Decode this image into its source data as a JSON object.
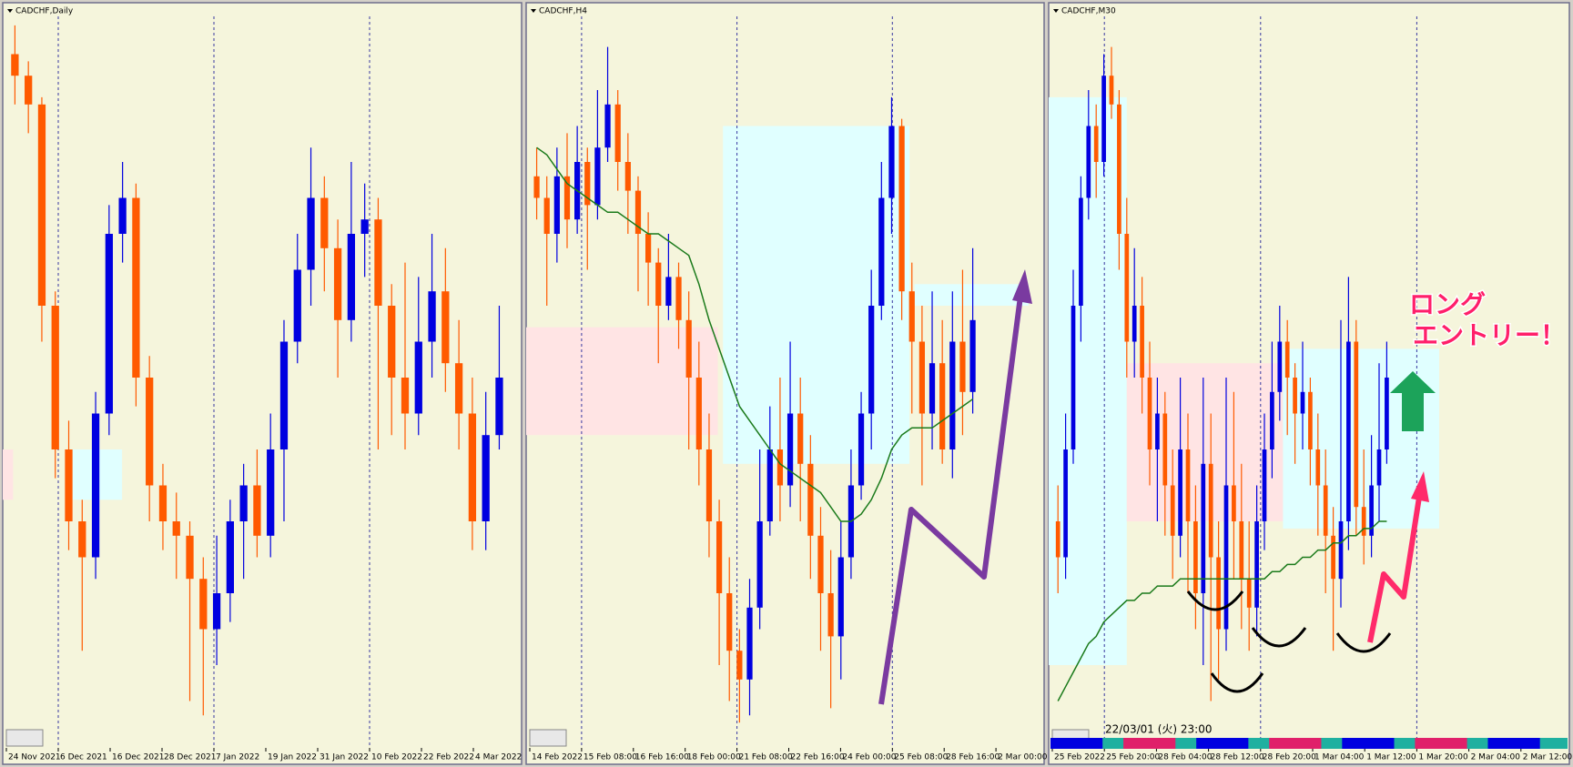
{
  "chart_data": [
    {
      "type": "candlestick",
      "title": "CADCHF,Daily",
      "ylim": [
        0,
        100
      ],
      "categories": [
        "24 Nov 2021",
        "6 Dec 2021",
        "16 Dec 2021",
        "28 Dec 2021",
        "7 Jan 2022",
        "19 Jan 2022",
        "31 Jan 2022",
        "10 Feb 2022",
        "22 Feb 2022",
        "4 Mar 2022"
      ],
      "up_color": "#0000e0",
      "down_color": "#ff5a00",
      "ohlc": [
        [
          95,
          99,
          88,
          92
        ],
        [
          92,
          94,
          84,
          88
        ],
        [
          88,
          89,
          55,
          60
        ],
        [
          60,
          62,
          36,
          40
        ],
        [
          40,
          44,
          26,
          30
        ],
        [
          30,
          33,
          12,
          25
        ],
        [
          25,
          48,
          22,
          45
        ],
        [
          45,
          74,
          42,
          70
        ],
        [
          70,
          80,
          66,
          75
        ],
        [
          75,
          77,
          46,
          50
        ],
        [
          50,
          53,
          30,
          35
        ],
        [
          35,
          38,
          26,
          30
        ],
        [
          30,
          34,
          22,
          28
        ],
        [
          28,
          30,
          5,
          22
        ],
        [
          22,
          25,
          3,
          15
        ],
        [
          15,
          28,
          10,
          20
        ],
        [
          20,
          33,
          16,
          30
        ],
        [
          30,
          38,
          22,
          35
        ],
        [
          35,
          40,
          25,
          28
        ],
        [
          28,
          45,
          25,
          40
        ],
        [
          40,
          58,
          30,
          55
        ],
        [
          55,
          70,
          52,
          65
        ],
        [
          65,
          82,
          60,
          75
        ],
        [
          75,
          78,
          62,
          68
        ],
        [
          68,
          72,
          50,
          58
        ],
        [
          58,
          80,
          55,
          70
        ],
        [
          70,
          77,
          64,
          72
        ],
        [
          72,
          75,
          40,
          60
        ],
        [
          60,
          63,
          42,
          50
        ],
        [
          50,
          66,
          40,
          45
        ],
        [
          45,
          64,
          42,
          55
        ],
        [
          55,
          70,
          50,
          62
        ],
        [
          62,
          68,
          48,
          52
        ],
        [
          52,
          58,
          40,
          45
        ],
        [
          45,
          50,
          26,
          30
        ],
        [
          30,
          48,
          26,
          42
        ],
        [
          42,
          60,
          40,
          50
        ]
      ]
    },
    {
      "type": "candlestick",
      "title": "CADCHF,H4",
      "ylim": [
        0,
        100
      ],
      "categories": [
        "14 Feb 2022",
        "15 Feb 08:00",
        "16 Feb 16:00",
        "18 Feb 00:00",
        "21 Feb 08:00",
        "22 Feb 16:00",
        "24 Feb 00:00",
        "25 Feb 08:00",
        "28 Feb 16:00",
        "2 Mar 00:00"
      ],
      "up_color": "#0000e0",
      "down_color": "#ff5a00",
      "ma_color": "#1a7a1a",
      "ohlc": [
        [
          78,
          82,
          72,
          75
        ],
        [
          75,
          78,
          60,
          70
        ],
        [
          70,
          82,
          66,
          78
        ],
        [
          78,
          84,
          68,
          72
        ],
        [
          72,
          85,
          70,
          80
        ],
        [
          80,
          82,
          65,
          74
        ],
        [
          74,
          90,
          72,
          82
        ],
        [
          82,
          96,
          80,
          88
        ],
        [
          88,
          90,
          76,
          80
        ],
        [
          80,
          84,
          70,
          76
        ],
        [
          76,
          78,
          62,
          70
        ],
        [
          70,
          73,
          60,
          66
        ],
        [
          66,
          68,
          52,
          60
        ],
        [
          60,
          70,
          58,
          64
        ],
        [
          64,
          66,
          54,
          58
        ],
        [
          58,
          62,
          40,
          50
        ],
        [
          50,
          55,
          35,
          40
        ],
        [
          40,
          45,
          25,
          30
        ],
        [
          30,
          33,
          10,
          20
        ],
        [
          20,
          25,
          5,
          12
        ],
        [
          12,
          15,
          2,
          8
        ],
        [
          8,
          22,
          3,
          18
        ],
        [
          18,
          40,
          15,
          30
        ],
        [
          30,
          46,
          28,
          40
        ],
        [
          40,
          50,
          30,
          35
        ],
        [
          35,
          55,
          32,
          45
        ],
        [
          45,
          50,
          30,
          38
        ],
        [
          38,
          42,
          22,
          28
        ],
        [
          28,
          32,
          12,
          20
        ],
        [
          20,
          26,
          4,
          14
        ],
        [
          14,
          30,
          8,
          25
        ],
        [
          25,
          40,
          22,
          35
        ],
        [
          35,
          48,
          33,
          45
        ],
        [
          45,
          65,
          40,
          60
        ],
        [
          60,
          80,
          58,
          75
        ],
        [
          75,
          89,
          70,
          85
        ],
        [
          85,
          86,
          58,
          62
        ],
        [
          62,
          66,
          45,
          55
        ],
        [
          55,
          60,
          35,
          45
        ],
        [
          45,
          62,
          40,
          52
        ],
        [
          52,
          58,
          38,
          40
        ],
        [
          40,
          62,
          36,
          55
        ],
        [
          55,
          65,
          42,
          48
        ],
        [
          48,
          68,
          45,
          58
        ]
      ],
      "ma": [
        82,
        81,
        79,
        77,
        76,
        75,
        74,
        73,
        73,
        72,
        71,
        70,
        70,
        69,
        68,
        67,
        63,
        58,
        54,
        50,
        46,
        44,
        42,
        40,
        38,
        37,
        36,
        35,
        34,
        32,
        30,
        30,
        31,
        33,
        36,
        40,
        42,
        43,
        43,
        43,
        44,
        45,
        46,
        47
      ]
    },
    {
      "type": "candlestick",
      "title": "CADCHF,M30",
      "ylim": [
        0,
        100
      ],
      "categories": [
        "25 Feb 2022",
        "25 Feb 20:00",
        "28 Feb 04:00",
        "28 Feb 12:00",
        "28 Feb 20:00",
        "1 Mar 04:00",
        "1 Mar 12:00",
        "1 Mar 20:00",
        "2 Mar 04:00",
        "2 Mar 12:00"
      ],
      "up_color": "#0000e0",
      "down_color": "#ff5a00",
      "ma_color": "#1a7a1a",
      "ohlc": [
        [
          30,
          35,
          20,
          25
        ],
        [
          25,
          45,
          22,
          40
        ],
        [
          40,
          65,
          38,
          60
        ],
        [
          60,
          78,
          55,
          75
        ],
        [
          75,
          90,
          72,
          85
        ],
        [
          85,
          88,
          75,
          80
        ],
        [
          80,
          95,
          78,
          92
        ],
        [
          92,
          96,
          86,
          88
        ],
        [
          88,
          90,
          65,
          70
        ],
        [
          70,
          75,
          50,
          55
        ],
        [
          55,
          68,
          50,
          60
        ],
        [
          60,
          64,
          45,
          50
        ],
        [
          50,
          55,
          35,
          40
        ],
        [
          40,
          50,
          30,
          45
        ],
        [
          45,
          48,
          28,
          35
        ],
        [
          35,
          40,
          22,
          28
        ],
        [
          28,
          50,
          25,
          40
        ],
        [
          40,
          45,
          20,
          30
        ],
        [
          30,
          35,
          15,
          20
        ],
        [
          20,
          50,
          10,
          38
        ],
        [
          38,
          45,
          5,
          25
        ],
        [
          25,
          30,
          8,
          15
        ],
        [
          15,
          50,
          12,
          35
        ],
        [
          35,
          48,
          22,
          30
        ],
        [
          30,
          38,
          15,
          22
        ],
        [
          22,
          30,
          12,
          18
        ],
        [
          18,
          35,
          14,
          30
        ],
        [
          30,
          45,
          26,
          40
        ],
        [
          40,
          55,
          36,
          48
        ],
        [
          48,
          60,
          44,
          55
        ],
        [
          55,
          58,
          42,
          50
        ],
        [
          50,
          52,
          38,
          45
        ],
        [
          45,
          55,
          40,
          48
        ],
        [
          48,
          50,
          35,
          40
        ],
        [
          40,
          45,
          28,
          35
        ],
        [
          35,
          40,
          20,
          28
        ],
        [
          28,
          32,
          12,
          22
        ],
        [
          22,
          58,
          18,
          30
        ],
        [
          30,
          64,
          26,
          55
        ],
        [
          55,
          58,
          28,
          32
        ],
        [
          32,
          40,
          24,
          28
        ],
        [
          28,
          42,
          25,
          35
        ],
        [
          35,
          52,
          30,
          40
        ],
        [
          40,
          55,
          38,
          50
        ]
      ],
      "ma": [
        5,
        7,
        9,
        11,
        13,
        14,
        16,
        17,
        18,
        19,
        19,
        20,
        20,
        21,
        21,
        21,
        22,
        22,
        22,
        22,
        22,
        22,
        22,
        22,
        22,
        22,
        22,
        22,
        23,
        23,
        24,
        24,
        25,
        25,
        26,
        26,
        27,
        27,
        28,
        28,
        29,
        29,
        30,
        30
      ],
      "annotation": [
        "ロング",
        "エントリー！"
      ],
      "timestamp": "22/03/01 (火) 23:00"
    }
  ]
}
